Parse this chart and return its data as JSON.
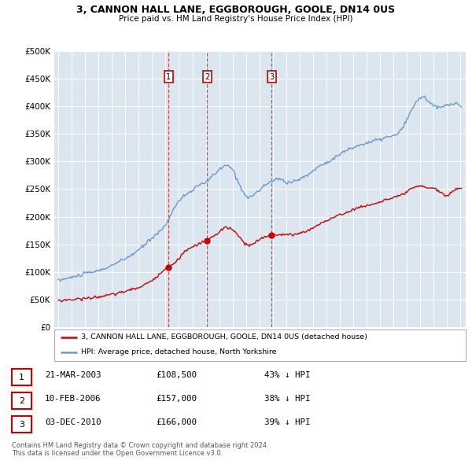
{
  "title": "3, CANNON HALL LANE, EGGBOROUGH, GOOLE, DN14 0US",
  "subtitle": "Price paid vs. HM Land Registry's House Price Index (HPI)",
  "background_color": "#ffffff",
  "plot_bg_color": "#dce6f1",
  "grid_color": "#ffffff",
  "ylim": [
    0,
    500000
  ],
  "yticks": [
    0,
    50000,
    100000,
    150000,
    200000,
    250000,
    300000,
    350000,
    400000,
    450000,
    500000
  ],
  "xlim_start": 1994.7,
  "xlim_end": 2025.4,
  "sale_year_nums": [
    2003.22,
    2006.11,
    2010.92
  ],
  "sale_prices": [
    108500,
    157000,
    166000
  ],
  "sale_labels": [
    "1",
    "2",
    "3"
  ],
  "legend_entries": [
    "3, CANNON HALL LANE, EGGBOROUGH, GOOLE, DN14 0US (detached house)",
    "HPI: Average price, detached house, North Yorkshire"
  ],
  "table_rows": [
    [
      "1",
      "21-MAR-2003",
      "£108,500",
      "43% ↓ HPI"
    ],
    [
      "2",
      "10-FEB-2006",
      "£157,000",
      "38% ↓ HPI"
    ],
    [
      "3",
      "03-DEC-2010",
      "£166,000",
      "39% ↓ HPI"
    ]
  ],
  "footnote": "Contains HM Land Registry data © Crown copyright and database right 2024.\nThis data is licensed under the Open Government Licence v3.0.",
  "hpi_line_color": "#6699cc",
  "sale_line_color": "#cc0000",
  "vline_color": "#cc3333"
}
